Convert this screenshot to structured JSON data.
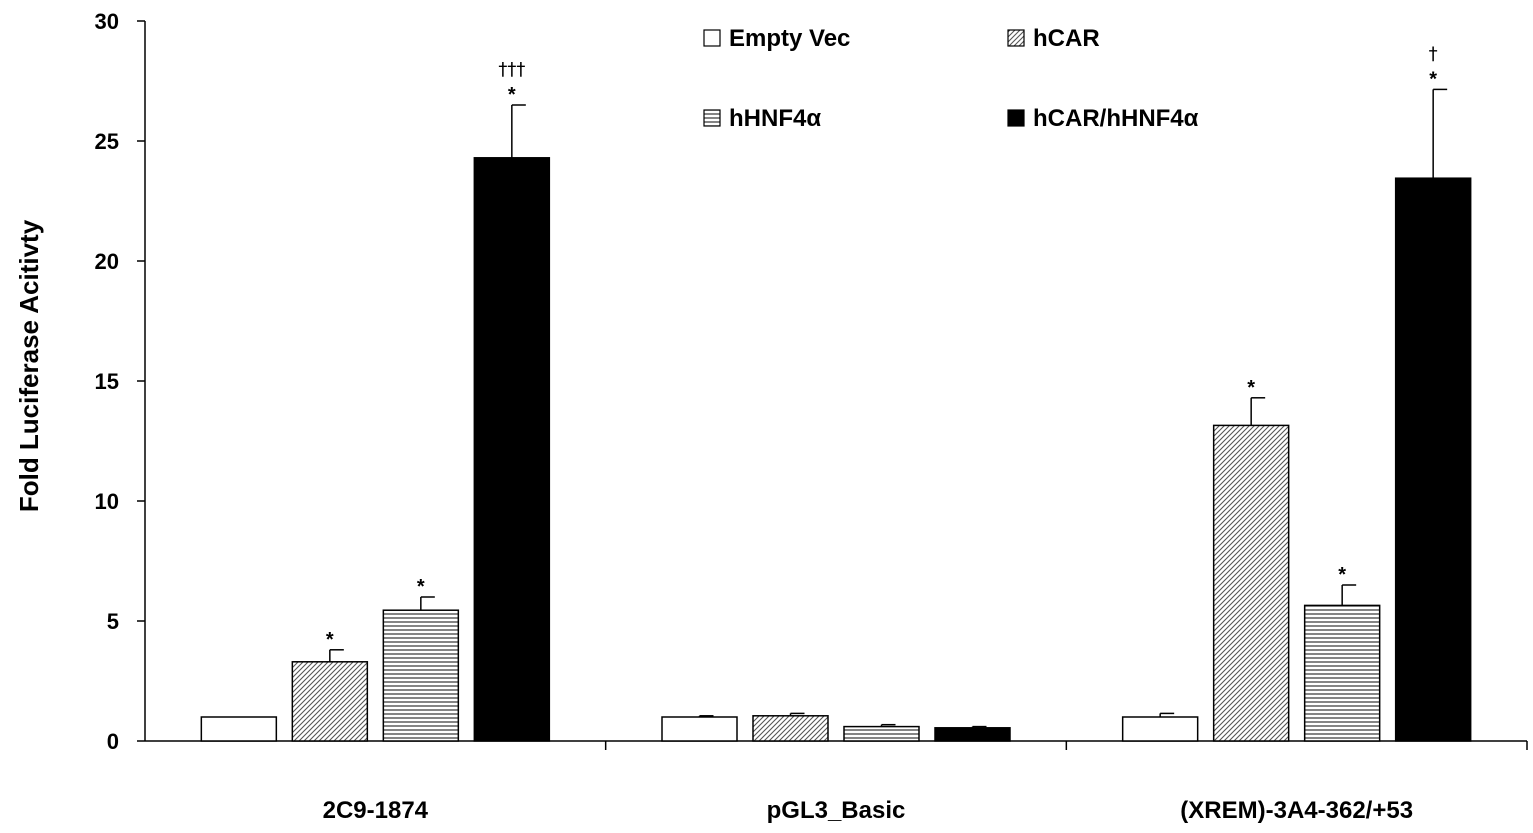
{
  "chart_data": {
    "type": "bar",
    "title": "",
    "xlabel": "",
    "ylabel": "Fold Luciferase Acitivty",
    "ylim": [
      0,
      30
    ],
    "yticks": [
      0,
      5,
      10,
      15,
      20,
      25,
      30
    ],
    "ytick_labels": [
      "0",
      "5",
      "10",
      "15",
      "20",
      "25",
      "30"
    ],
    "grid": false,
    "legend_position": "top-center",
    "categories": [
      "2C9-1874",
      "pGL3_Basic",
      "(XREM)-3A4-362/+53"
    ],
    "series": [
      {
        "name": "Empty Vec",
        "fill": "white",
        "values": [
          1.0,
          1.0,
          1.0
        ],
        "errors": [
          0.0,
          0.05,
          0.15
        ],
        "annotations": [
          "",
          "",
          ""
        ]
      },
      {
        "name": "hCAR",
        "fill": "diagonal",
        "values": [
          3.3,
          1.05,
          13.15
        ],
        "errors": [
          0.5,
          0.1,
          1.15
        ],
        "annotations": [
          "*",
          "",
          "*"
        ]
      },
      {
        "name": "hHNF4α",
        "fill": "horizontal",
        "values": [
          5.45,
          0.6,
          5.65
        ],
        "errors": [
          0.55,
          0.08,
          0.85
        ],
        "annotations": [
          "*",
          "",
          "*"
        ]
      },
      {
        "name": "hCAR/hHNF4α",
        "fill": "black",
        "values": [
          24.3,
          0.55,
          23.45
        ],
        "errors": [
          2.2,
          0.05,
          3.7
        ],
        "annotations": [
          "*",
          "",
          "*"
        ]
      }
    ],
    "daggers": [
      "†††",
      "",
      "†"
    ],
    "colors": {
      "bar_stroke": "#000000",
      "black_fill": "#000000",
      "white_fill": "#ffffff"
    }
  }
}
